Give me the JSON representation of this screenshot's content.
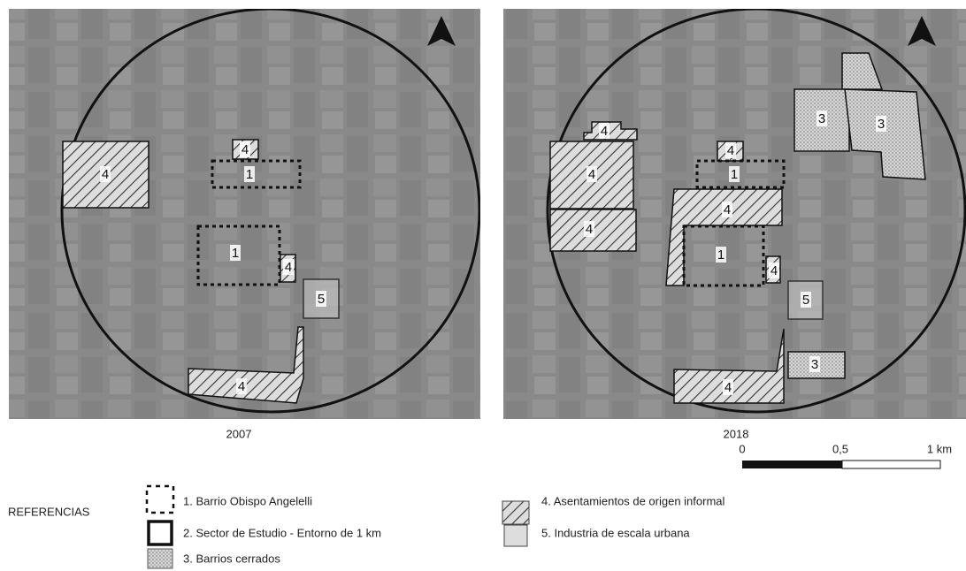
{
  "maps": [
    {
      "caption": "2007",
      "zones": [
        "4",
        "4",
        "1",
        "1",
        "4",
        "5",
        "4"
      ]
    },
    {
      "caption": "2018",
      "zones": [
        "4",
        "4",
        "4",
        "4",
        "1",
        "4",
        "1",
        "4",
        "5",
        "3",
        "3",
        "3",
        "4"
      ]
    }
  ],
  "scale": {
    "ticks": [
      "0",
      "0,5",
      "1 km"
    ]
  },
  "legend": {
    "title": "REFERENCIAS",
    "items": [
      "1. Barrio Obispo Angelelli",
      "2. Sector de Estudio - Entorno de 1 km",
      "3. Barrios cerrados",
      "4. Asentamientos de origen informal",
      "5. Industria de escala urbana"
    ]
  }
}
